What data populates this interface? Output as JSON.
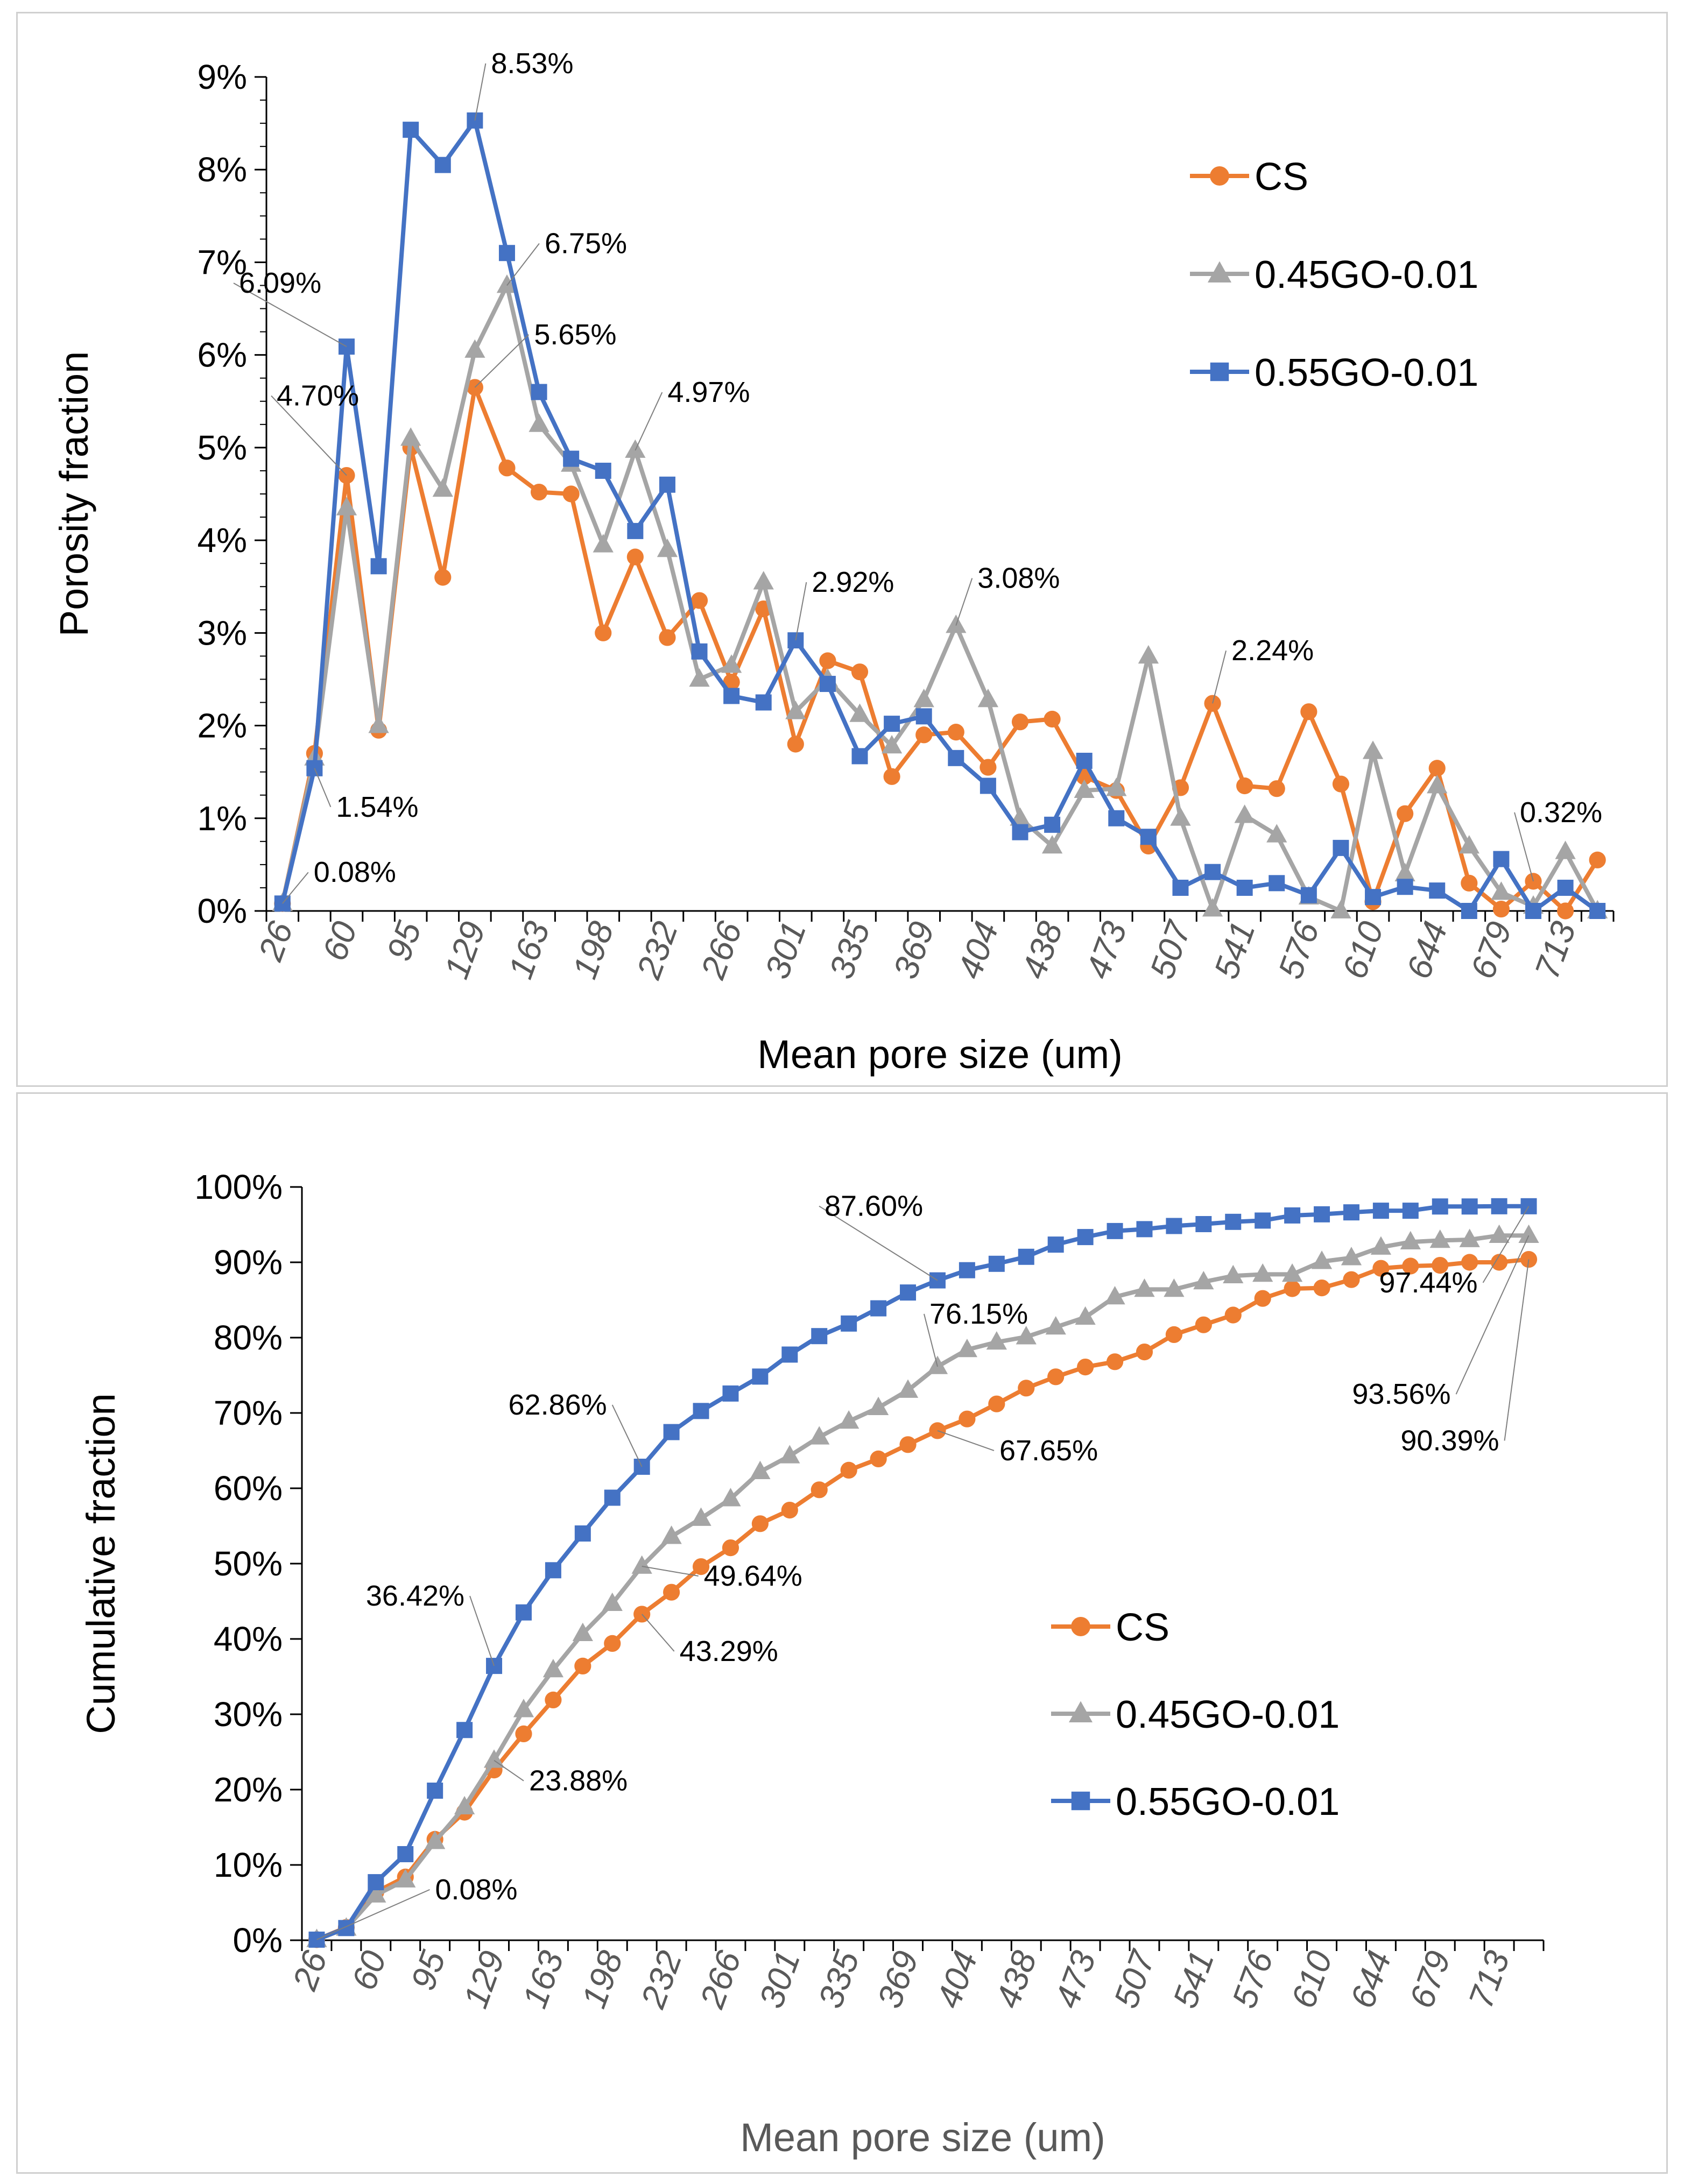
{
  "colors": {
    "cs": "#ED7D31",
    "go045": "#A5A5A5",
    "go055": "#4472C4"
  },
  "chart_data": [
    {
      "type": "line",
      "title": "",
      "xlabel": "Mean pore size  (um)",
      "ylabel": "Porosity fraction",
      "ylim": [
        0,
        9
      ],
      "yticks": [
        "0%",
        "1%",
        "2%",
        "3%",
        "4%",
        "5%",
        "6%",
        "7%",
        "8%",
        "9%"
      ],
      "x_labels": [
        "26",
        "60",
        "95",
        "129",
        "163",
        "198",
        "232",
        "266",
        "301",
        "335",
        "369",
        "404",
        "438",
        "473",
        "507",
        "541",
        "576",
        "610",
        "644",
        "679",
        "713"
      ],
      "legend_position": "top-right",
      "series": [
        {
          "name": "CS",
          "marker": "circle",
          "values": [
            0.08,
            1.7,
            4.7,
            1.95,
            5.0,
            3.6,
            5.65,
            4.78,
            4.52,
            4.5,
            3.0,
            3.82,
            2.95,
            3.35,
            2.47,
            3.26,
            1.8,
            2.7,
            2.58,
            1.45,
            1.9,
            1.93,
            1.55,
            2.04,
            2.07,
            1.45,
            1.3,
            0.7,
            1.33,
            2.24,
            1.35,
            1.32,
            2.15,
            1.37,
            0.1,
            1.05,
            1.54,
            0.3,
            0.02,
            0.32,
            0.0,
            0.55
          ]
        },
        {
          "name": "0.45GO-0.01",
          "marker": "triangle",
          "values": [
            0.08,
            1.65,
            4.35,
            2.0,
            5.1,
            4.55,
            6.05,
            6.75,
            5.25,
            4.82,
            3.95,
            4.97,
            3.9,
            2.5,
            2.65,
            3.55,
            2.15,
            2.5,
            2.12,
            1.78,
            2.28,
            3.08,
            2.28,
            1.0,
            0.7,
            1.3,
            1.32,
            2.75,
            1.0,
            0.02,
            1.03,
            0.82,
            0.15,
            0.0,
            1.72,
            0.4,
            1.35,
            0.7,
            0.2,
            0.05,
            0.64,
            0.0
          ]
        },
        {
          "name": "0.55GO-0.01",
          "marker": "square",
          "values": [
            0.08,
            1.54,
            6.09,
            3.72,
            8.43,
            8.05,
            8.53,
            7.1,
            5.6,
            4.88,
            4.75,
            4.1,
            4.6,
            2.8,
            2.32,
            2.25,
            2.92,
            2.45,
            1.67,
            2.02,
            2.1,
            1.65,
            1.35,
            0.85,
            0.93,
            1.62,
            1.0,
            0.8,
            0.25,
            0.42,
            0.25,
            0.3,
            0.17,
            0.68,
            0.15,
            0.26,
            0.22,
            0.0,
            0.56,
            0.0,
            0.25,
            0.0
          ]
        }
      ],
      "annotations": [
        {
          "text": "8.53%",
          "series": 2,
          "index": 6
        },
        {
          "text": "6.75%",
          "series": 1,
          "index": 7
        },
        {
          "text": "6.09%",
          "series": 2,
          "index": 2
        },
        {
          "text": "5.65%",
          "series": 0,
          "index": 6
        },
        {
          "text": "4.97%",
          "series": 1,
          "index": 11
        },
        {
          "text": "4.70%",
          "series": 0,
          "index": 2
        },
        {
          "text": "2.92%",
          "series": 2,
          "index": 16
        },
        {
          "text": "3.08%",
          "series": 1,
          "index": 21
        },
        {
          "text": "2.24%",
          "series": 0,
          "index": 29
        },
        {
          "text": "1.54%",
          "series": 2,
          "index": 1
        },
        {
          "text": "0.08%",
          "series": 2,
          "index": 0
        },
        {
          "text": "0.32%",
          "series": 0,
          "index": 39
        }
      ]
    },
    {
      "type": "line",
      "title": "",
      "xlabel": "Mean pore size  (um)",
      "ylabel": "Cumulative fraction",
      "ylim": [
        0,
        100
      ],
      "yticks": [
        "0%",
        "10%",
        "20%",
        "30%",
        "40%",
        "50%",
        "60%",
        "70%",
        "80%",
        "90%",
        "100%"
      ],
      "x_labels": [
        "26",
        "60",
        "95",
        "129",
        "163",
        "198",
        "232",
        "266",
        "301",
        "335",
        "369",
        "404",
        "438",
        "473",
        "507",
        "541",
        "576",
        "610",
        "644",
        "679",
        "713"
      ],
      "legend_position": "center-right",
      "series": [
        {
          "name": "CS",
          "marker": "circle",
          "values": [
            0.08,
            1.7,
            6.4,
            8.4,
            13.4,
            17.0,
            22.6,
            27.4,
            31.9,
            36.4,
            39.4,
            43.29,
            46.2,
            49.6,
            52.1,
            55.3,
            57.1,
            59.8,
            62.4,
            63.9,
            65.8,
            67.65,
            69.2,
            71.2,
            73.3,
            74.8,
            76.1,
            76.8,
            78.1,
            80.4,
            81.7,
            83.0,
            85.2,
            86.5,
            86.6,
            87.7,
            89.2,
            89.5,
            89.6,
            90.0,
            90.0,
            90.39
          ]
        },
        {
          "name": "0.45GO-0.01",
          "marker": "triangle",
          "values": [
            0.08,
            1.6,
            6.0,
            8.0,
            13.1,
            17.7,
            23.88,
            30.6,
            35.9,
            40.7,
            44.7,
            49.64,
            53.6,
            56.0,
            58.6,
            62.2,
            64.3,
            66.8,
            68.9,
            70.7,
            73.0,
            76.15,
            78.4,
            79.4,
            80.1,
            81.4,
            82.7,
            85.4,
            86.4,
            86.4,
            87.4,
            88.2,
            88.4,
            88.4,
            90.1,
            90.6,
            92.0,
            92.7,
            92.9,
            93.0,
            93.56,
            93.56
          ]
        },
        {
          "name": "0.55GO-0.01",
          "marker": "square",
          "values": [
            0.08,
            1.62,
            7.71,
            11.43,
            19.86,
            27.91,
            36.42,
            43.52,
            49.12,
            54.0,
            58.75,
            62.86,
            67.46,
            70.26,
            72.58,
            74.83,
            77.75,
            80.2,
            81.87,
            83.89,
            85.99,
            87.6,
            88.95,
            89.8,
            90.73,
            92.35,
            93.35,
            94.15,
            94.4,
            94.82,
            95.07,
            95.37,
            95.54,
            96.22,
            96.37,
            96.63,
            96.85,
            96.85,
            97.41,
            97.41,
            97.44,
            97.44
          ]
        }
      ],
      "annotations": [
        {
          "text": "87.60%",
          "series": 2,
          "index": 21
        },
        {
          "text": "76.15%",
          "series": 1,
          "index": 21
        },
        {
          "text": "62.86%",
          "series": 2,
          "index": 11
        },
        {
          "text": "67.65%",
          "series": 0,
          "index": 21
        },
        {
          "text": "49.64%",
          "series": 1,
          "index": 11
        },
        {
          "text": "36.42%",
          "series": 2,
          "index": 6
        },
        {
          "text": "43.29%",
          "series": 0,
          "index": 11
        },
        {
          "text": "23.88%",
          "series": 1,
          "index": 6
        },
        {
          "text": "0.08%",
          "series": 2,
          "index": 0
        },
        {
          "text": "97.44%",
          "series": 2,
          "index": 41
        },
        {
          "text": "93.56%",
          "series": 1,
          "index": 41
        },
        {
          "text": "90.39%",
          "series": 0,
          "index": 41
        }
      ]
    }
  ]
}
